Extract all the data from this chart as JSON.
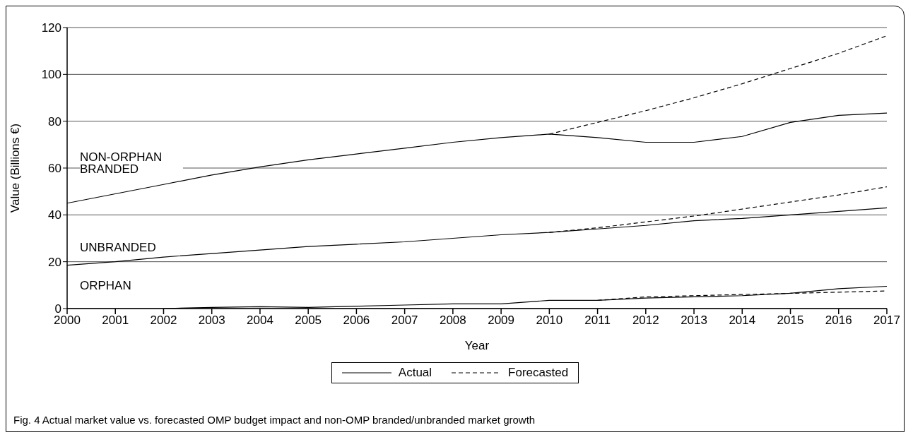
{
  "chart_data": {
    "type": "line",
    "xlabel": "Year",
    "ylabel": "Value (Billions €)",
    "x": [
      2000,
      2001,
      2002,
      2003,
      2004,
      2005,
      2006,
      2007,
      2008,
      2009,
      2010,
      2011,
      2012,
      2013,
      2014,
      2015,
      2016,
      2017
    ],
    "xlim": [
      2000,
      2017
    ],
    "xticks": [
      2000,
      2001,
      2002,
      2003,
      2004,
      2005,
      2006,
      2007,
      2008,
      2009,
      2010,
      2011,
      2012,
      2013,
      2014,
      2015,
      2016,
      2017
    ],
    "ylim": [
      0,
      120
    ],
    "yticks": [
      0,
      20,
      40,
      60,
      80,
      100,
      120
    ],
    "grid": "y",
    "legend": "bottom",
    "marker": "none",
    "series": [
      {
        "name": "Actual",
        "color": "#000000",
        "line_style": "solid",
        "values": [
          45,
          49,
          53,
          57,
          60.5,
          63.5,
          66,
          68.5,
          71,
          73,
          74.5,
          73,
          71,
          71,
          73.5,
          79.5,
          82.5,
          83.5
        ]
      },
      {
        "name": "Forecasted",
        "color": "#000000",
        "line_style": "dashed",
        "values": [
          null,
          null,
          null,
          null,
          null,
          null,
          null,
          null,
          null,
          null,
          74.5,
          79.5,
          84.5,
          90,
          96,
          102.5,
          109,
          116.5
        ]
      },
      {
        "color": "#000000",
        "line_style": "solid",
        "values": [
          18.5,
          20,
          22,
          23.5,
          25,
          26.5,
          27.5,
          28.5,
          30,
          31.5,
          32.5,
          34,
          35.5,
          37.5,
          38.5,
          40,
          41.5,
          43
        ]
      },
      {
        "color": "#000000",
        "line_style": "dashed",
        "values": [
          null,
          null,
          null,
          null,
          null,
          null,
          null,
          null,
          null,
          null,
          32.5,
          34.5,
          37,
          39.5,
          42.5,
          45.5,
          48.5,
          52
        ]
      },
      {
        "color": "#000000",
        "line_style": "solid",
        "values": [
          null,
          null,
          0,
          0.5,
          0.8,
          0.5,
          1,
          1.5,
          2,
          2,
          3.5,
          3.5,
          4.5,
          5,
          5.5,
          6.5,
          8.5,
          9.5
        ]
      },
      {
        "color": "#000000",
        "line_style": "dashed",
        "values": [
          null,
          null,
          null,
          null,
          null,
          null,
          null,
          null,
          null,
          null,
          null,
          3.5,
          5,
          5.5,
          6,
          6.5,
          7,
          7.5
        ]
      }
    ],
    "annotations": [
      "NON-ORPHAN BRANDED",
      "UNBRANDED",
      "ORPHAN",
      "Fig. 4 Actual market value vs. forecasted OMP budget impact and non-OMP branded/unbranded market growth"
    ]
  }
}
